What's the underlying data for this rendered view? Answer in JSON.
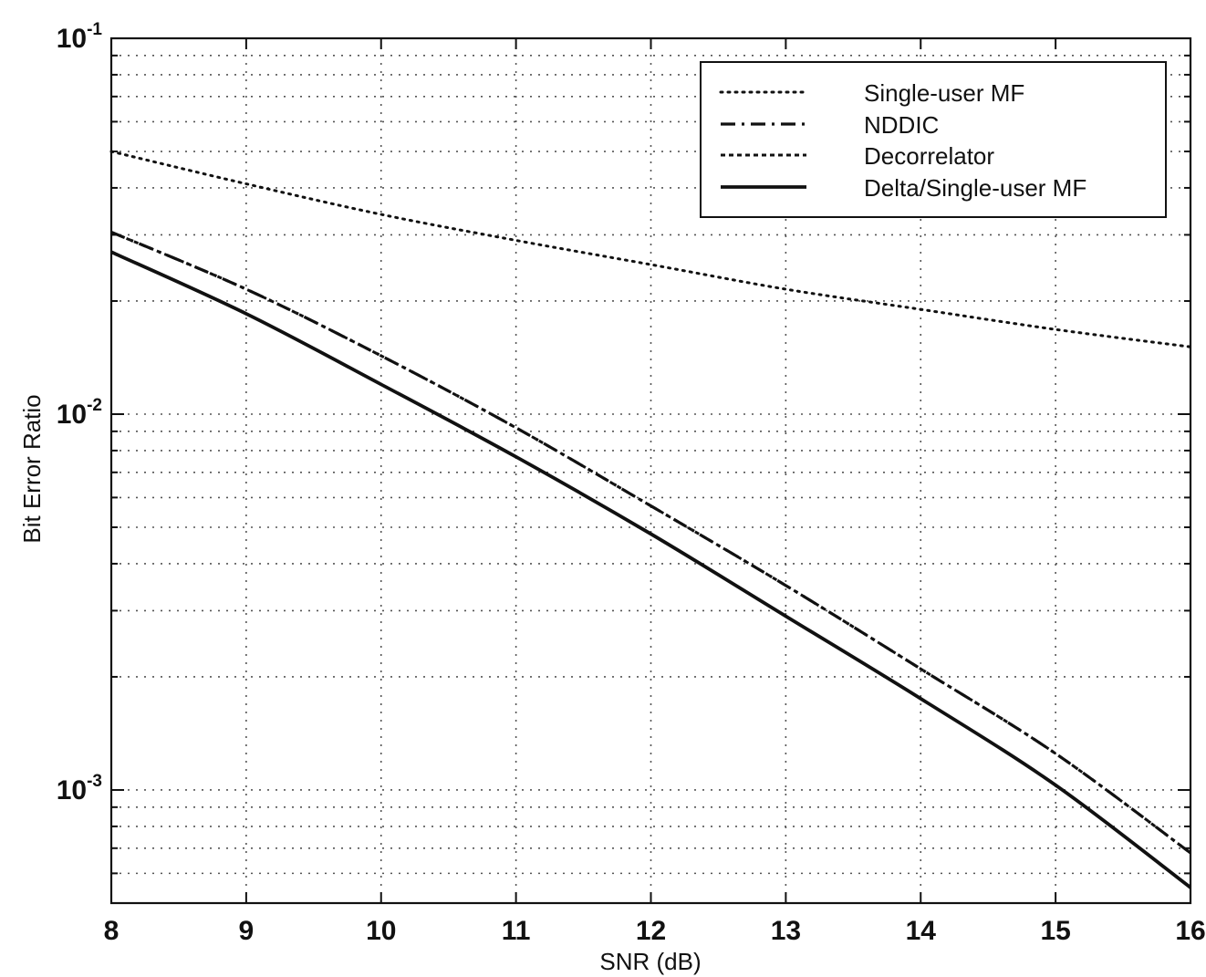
{
  "chart_data": {
    "type": "line",
    "title": "",
    "xlabel": "SNR (dB)",
    "ylabel": "Bit Error Ratio",
    "xlim": [
      8,
      16
    ],
    "ylim": [
      0.0005,
      0.1
    ],
    "yscale": "log",
    "grid": true,
    "legend_position": "top-right",
    "x_ticks": [
      "8",
      "9",
      "10",
      "11",
      "12",
      "13",
      "14",
      "15",
      "16"
    ],
    "y_ticks": [
      {
        "base": "10",
        "exp": "-1"
      },
      {
        "base": "10",
        "exp": "-2"
      },
      {
        "base": "10",
        "exp": "-3"
      }
    ],
    "x": [
      8,
      9,
      10,
      11,
      12,
      13,
      14,
      15,
      16
    ],
    "series": [
      {
        "name": "Single-user MF",
        "style": "dotted",
        "values": [
          0.05,
          0.041,
          0.034,
          0.029,
          0.025,
          0.0215,
          0.019,
          0.0168,
          0.0151
        ]
      },
      {
        "name": "NDDIC",
        "style": "dashdot",
        "values": [
          0.0305,
          0.0215,
          0.0143,
          0.0092,
          0.0057,
          0.0035,
          0.0021,
          0.00125,
          0.00068
        ]
      },
      {
        "name": "Decorrelator",
        "style": "dashed",
        "values": [
          0.0305,
          0.0215,
          0.0143,
          0.0092,
          0.0057,
          0.0035,
          0.0021,
          0.00125,
          0.00068
        ]
      },
      {
        "name": "Delta/Single-user MF",
        "style": "solid",
        "values": [
          0.027,
          0.0185,
          0.012,
          0.0077,
          0.0048,
          0.0029,
          0.00175,
          0.00103,
          0.00055
        ]
      }
    ]
  }
}
